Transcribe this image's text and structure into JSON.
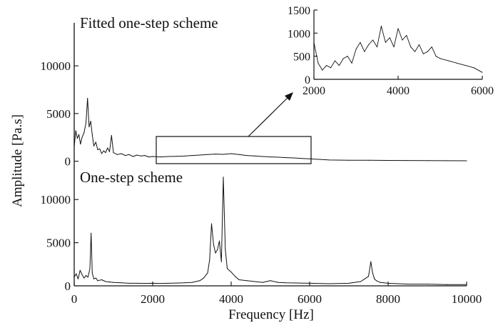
{
  "chart_data": [
    {
      "panel": "top",
      "type": "line",
      "title": "Fitted one-step scheme",
      "xlabel": "Frequency [Hz]",
      "ylabel": "Amplitude [Pa.s]",
      "xlim": [
        0,
        10000
      ],
      "xticks": [
        0,
        2000,
        4000,
        6000,
        8000,
        10000
      ],
      "yticks": [
        0,
        5000,
        10000
      ],
      "ylim": [
        -400,
        14500
      ],
      "series": [
        {
          "values_x": [
            0,
            40,
            80,
            120,
            160,
            200,
            250,
            300,
            340,
            380,
            420,
            460,
            500,
            550,
            600,
            650,
            700,
            750,
            800,
            850,
            900,
            950,
            1000,
            1100,
            1200,
            1300,
            1400,
            1500,
            1600,
            1700,
            1800,
            1900,
            2000,
            2200,
            2400,
            2600,
            2800,
            3000,
            3200,
            3400,
            3600,
            3800,
            4000,
            4200,
            4400,
            4600,
            4800,
            5000,
            5200,
            5400,
            5600,
            5800,
            6000,
            6500,
            7000,
            7500,
            8000,
            8500,
            9000,
            9500,
            10000
          ],
          "values_y": [
            1500,
            3200,
            2400,
            2800,
            1800,
            2500,
            3000,
            4000,
            6600,
            3600,
            4200,
            2800,
            1600,
            2000,
            1200,
            1300,
            800,
            1100,
            900,
            1400,
            1000,
            2700,
            900,
            700,
            800,
            600,
            700,
            500,
            650,
            550,
            600,
            450,
            500,
            450,
            500,
            520,
            540,
            600,
            650,
            700,
            750,
            720,
            800,
            700,
            600,
            550,
            500,
            450,
            420,
            380,
            350,
            300,
            260,
            130,
            110,
            100,
            90,
            80,
            70,
            60,
            50
          ]
        }
      ]
    },
    {
      "panel": "inset",
      "type": "line",
      "xlim": [
        2000,
        6000
      ],
      "xticks": [
        2000,
        4000,
        6000
      ],
      "yticks": [
        0,
        500,
        1000,
        1500
      ],
      "ylim": [
        0,
        1500
      ],
      "series": [
        {
          "values_x": [
            2000,
            2100,
            2200,
            2300,
            2400,
            2500,
            2600,
            2700,
            2800,
            2900,
            3000,
            3100,
            3200,
            3300,
            3400,
            3500,
            3600,
            3700,
            3800,
            3900,
            4000,
            4100,
            4200,
            4300,
            4400,
            4500,
            4600,
            4700,
            4800,
            4900,
            5000,
            5200,
            5400,
            5600,
            5800,
            6000
          ],
          "values_y": [
            800,
            350,
            200,
            300,
            250,
            400,
            300,
            450,
            500,
            350,
            650,
            800,
            600,
            750,
            850,
            700,
            1150,
            800,
            900,
            700,
            1100,
            850,
            950,
            700,
            600,
            750,
            550,
            600,
            700,
            500,
            450,
            400,
            350,
            300,
            250,
            150
          ]
        }
      ]
    },
    {
      "panel": "bottom",
      "type": "line",
      "title": "One-step scheme",
      "xlim": [
        0,
        10000
      ],
      "xticks": [
        0,
        2000,
        4000,
        6000,
        8000,
        10000
      ],
      "yticks": [
        0,
        5000,
        10000
      ],
      "ylim": [
        0,
        13000
      ],
      "series": [
        {
          "values_x": [
            0,
            50,
            100,
            150,
            200,
            250,
            300,
            350,
            400,
            430,
            460,
            500,
            550,
            600,
            700,
            800,
            900,
            1000,
            1200,
            1400,
            1600,
            1800,
            2000,
            2200,
            2400,
            2600,
            2800,
            3000,
            3200,
            3300,
            3400,
            3450,
            3500,
            3550,
            3600,
            3650,
            3700,
            3750,
            3800,
            3850,
            3900,
            4000,
            4100,
            4200,
            4400,
            4600,
            4800,
            5000,
            5200,
            5400,
            6000,
            6500,
            7000,
            7300,
            7500,
            7560,
            7600,
            7650,
            7700,
            7800,
            8000,
            8500,
            9000,
            9500,
            10000
          ],
          "values_y": [
            1000,
            1400,
            800,
            1800,
            1300,
            900,
            1200,
            1000,
            2000,
            6100,
            1500,
            800,
            900,
            600,
            700,
            500,
            450,
            400,
            350,
            300,
            300,
            280,
            300,
            280,
            300,
            320,
            350,
            400,
            600,
            900,
            1500,
            3000,
            7200,
            4800,
            3800,
            4200,
            5200,
            2800,
            12600,
            4200,
            2000,
            1600,
            1100,
            700,
            600,
            500,
            400,
            600,
            400,
            350,
            300,
            250,
            300,
            500,
            1100,
            2800,
            1600,
            800,
            600,
            400,
            300,
            200,
            200,
            150,
            150
          ]
        }
      ]
    }
  ]
}
